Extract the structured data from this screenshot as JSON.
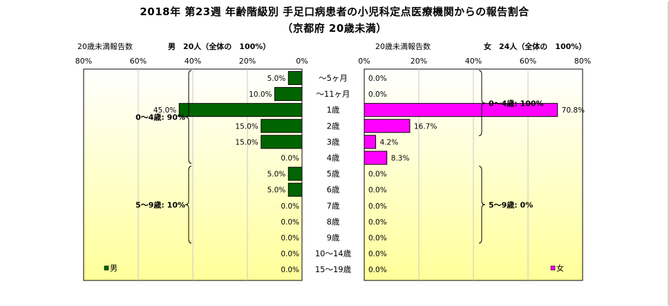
{
  "title_line1": "2018年 第23週 年齢階級別 手足口病患者の小児科定点医療機関からの報告割合",
  "title_line2": "（京都府 20歳未満）",
  "colors": {
    "male": "#006400",
    "female": "#ff00ff",
    "panel_top": "#ffffff",
    "panel_bottom": "#ffff99"
  },
  "chart_data": {
    "type": "bar",
    "categories": [
      "～5ヶ月",
      "～11ヶ月",
      "1歳",
      "2歳",
      "3歳",
      "4歳",
      "5歳",
      "6歳",
      "7歳",
      "8歳",
      "9歳",
      "10～14歳",
      "15～19歳"
    ],
    "xlim": [
      0,
      80
    ],
    "ticks": [
      0,
      20,
      40,
      60,
      80
    ],
    "tick_labels_left": [
      "0%",
      "20%",
      "40%",
      "60%",
      "80%"
    ],
    "tick_labels_right": [
      "0%",
      "20%",
      "40%",
      "60%",
      "80%"
    ],
    "grid": true,
    "series": [
      {
        "name": "男",
        "header": "男　20人（全体の　100%）",
        "count_label": "20歳未満報告数",
        "values": [
          5.0,
          10.0,
          45.0,
          15.0,
          15.0,
          0.0,
          5.0,
          5.0,
          0.0,
          0.0,
          0.0,
          0.0,
          0.0
        ],
        "labels": [
          "5.0%",
          "10.0%",
          "45.0%",
          "15.0%",
          "15.0%",
          "0.0%",
          "5.0%",
          "5.0%",
          "0.0%",
          "0.0%",
          "0.0%",
          "0.0%",
          "0.0%"
        ],
        "group_labels": [
          "0～4歳: 90%",
          "5～9歳: 10%"
        ]
      },
      {
        "name": "女",
        "header": "女　24人（全体の　100%）",
        "count_label": "20歳未満報告数",
        "values": [
          0.0,
          0.0,
          70.8,
          16.7,
          4.2,
          8.3,
          0.0,
          0.0,
          0.0,
          0.0,
          0.0,
          0.0,
          0.0
        ],
        "labels": [
          "0.0%",
          "0.0%",
          "70.8%",
          "16.7%",
          "4.2%",
          "8.3%",
          "0.0%",
          "0.0%",
          "0.0%",
          "0.0%",
          "0.0%",
          "0.0%",
          "0.0%"
        ],
        "group_labels": [
          "0～4歳: 100%",
          "5～9歳: 0%"
        ]
      }
    ]
  }
}
